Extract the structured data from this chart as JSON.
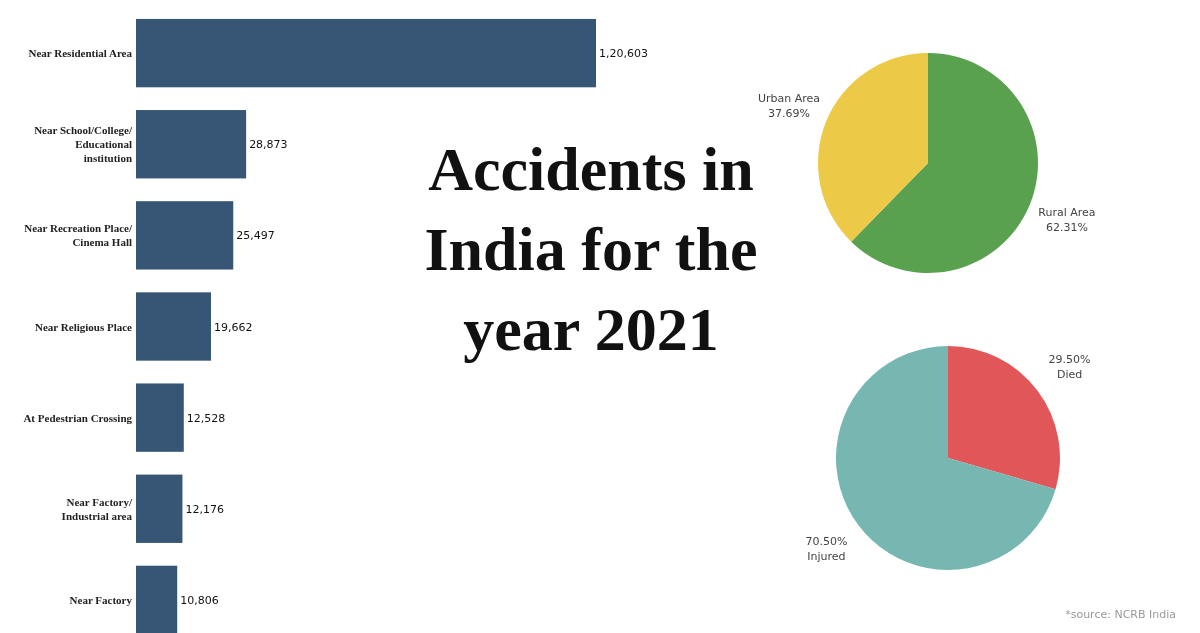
{
  "chart_data": [
    {
      "type": "bar",
      "orientation": "horizontal",
      "categories": [
        "Near Residential Area",
        "Near School/College/Educational institution",
        "Near Recreation Place/Cinema Hall",
        "Near Religious Place",
        "At Pedestrian Crossing",
        "Near Factory/Industrial area",
        "Near Factory"
      ],
      "values": [
        120603,
        28873,
        25497,
        19662,
        12528,
        12176,
        10806
      ],
      "value_labels": [
        "1,20,603",
        "28,873",
        "25,497",
        "19,662",
        "12,528",
        "12,176",
        "10,806"
      ],
      "color": "#375675"
    },
    {
      "type": "other",
      "title": "Accidents in India for the year 2021",
      "annotations": [
        "*source: NCRB India"
      ]
    },
    {
      "type": "pie",
      "categories": [
        "Rural Area",
        "Urban Area"
      ],
      "values": [
        62.31,
        37.69
      ],
      "value_labels": [
        "62.31%",
        "37.69%"
      ],
      "colors": [
        "#59a14f",
        "#edc948"
      ]
    },
    {
      "type": "pie",
      "categories": [
        "Died",
        "Injured"
      ],
      "values": [
        29.5,
        70.5
      ],
      "value_labels": [
        "29.50%",
        "70.50%"
      ],
      "colors": [
        "#e15759",
        "#76b7b2"
      ]
    }
  ]
}
